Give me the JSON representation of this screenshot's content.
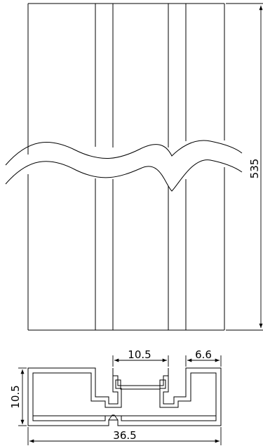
{
  "dimensions": {
    "length": "535",
    "slot_width": "10.5",
    "lip_width": "6.6",
    "height": "10.5",
    "overall_width": "36.5"
  }
}
